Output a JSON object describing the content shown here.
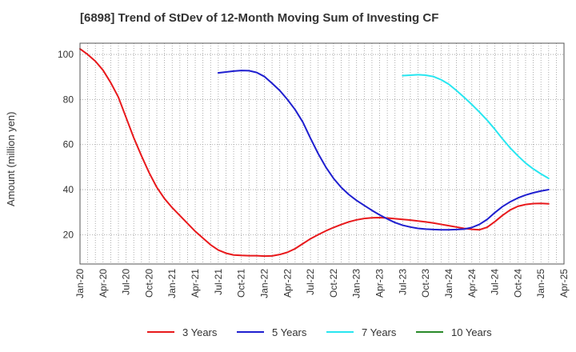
{
  "title": "[6898]  Trend of StDev of 12-Month Moving Sum of Investing CF",
  "colors": {
    "3y": "#e8191c",
    "5y": "#1f1fcf",
    "7y": "#28e6f0",
    "10y": "#2a8a2a",
    "grid": "#999999",
    "axis": "#555555"
  },
  "chart_data": {
    "type": "line",
    "title": "[6898]  Trend of StDev of 12-Month Moving Sum of Investing CF",
    "ylabel": "Amount (million yen)",
    "xlabel": "",
    "ylim": [
      7,
      105
    ],
    "yticks": [
      20,
      40,
      60,
      80,
      100
    ],
    "xlim": [
      "2020-01",
      "2025-04"
    ],
    "xticks": [
      "Jan-20",
      "Apr-20",
      "Jul-20",
      "Oct-20",
      "Jan-21",
      "Apr-21",
      "Jul-21",
      "Oct-21",
      "Jan-22",
      "Apr-22",
      "Jul-22",
      "Oct-22",
      "Jan-23",
      "Apr-23",
      "Jul-23",
      "Oct-23",
      "Jan-24",
      "Apr-24",
      "Jul-24",
      "Oct-24",
      "Jan-25",
      "Apr-25"
    ],
    "grid": true,
    "legend_position": "bottom",
    "series": [
      {
        "name": "3 Years",
        "color": "#e8191c",
        "points": [
          [
            "2020-01",
            102.5
          ],
          [
            "2020-02",
            100
          ],
          [
            "2020-03",
            97
          ],
          [
            "2020-04",
            93
          ],
          [
            "2020-05",
            87.5
          ],
          [
            "2020-06",
            81
          ],
          [
            "2020-07",
            72
          ],
          [
            "2020-08",
            63
          ],
          [
            "2020-09",
            55
          ],
          [
            "2020-10",
            47.5
          ],
          [
            "2020-11",
            41
          ],
          [
            "2020-12",
            36
          ],
          [
            "2021-01",
            32
          ],
          [
            "2021-02",
            28.5
          ],
          [
            "2021-03",
            25
          ],
          [
            "2021-04",
            21.5
          ],
          [
            "2021-05",
            18.5
          ],
          [
            "2021-06",
            15.5
          ],
          [
            "2021-07",
            13.2
          ],
          [
            "2021-08",
            11.8
          ],
          [
            "2021-09",
            11
          ],
          [
            "2021-10",
            10.8
          ],
          [
            "2021-11",
            10.7
          ],
          [
            "2021-12",
            10.7
          ],
          [
            "2022-01",
            10.5
          ],
          [
            "2022-02",
            10.6
          ],
          [
            "2022-03",
            11.2
          ],
          [
            "2022-04",
            12.2
          ],
          [
            "2022-05",
            13.8
          ],
          [
            "2022-06",
            16
          ],
          [
            "2022-07",
            18.2
          ],
          [
            "2022-08",
            20
          ],
          [
            "2022-09",
            21.7
          ],
          [
            "2022-10",
            23.2
          ],
          [
            "2022-11",
            24.5
          ],
          [
            "2022-12",
            25.7
          ],
          [
            "2023-01",
            26.6
          ],
          [
            "2023-02",
            27.2
          ],
          [
            "2023-03",
            27.5
          ],
          [
            "2023-04",
            27.6
          ],
          [
            "2023-05",
            27.4
          ],
          [
            "2023-06",
            27.1
          ],
          [
            "2023-07",
            26.8
          ],
          [
            "2023-08",
            26.5
          ],
          [
            "2023-09",
            26.1
          ],
          [
            "2023-10",
            25.7
          ],
          [
            "2023-11",
            25.2
          ],
          [
            "2023-12",
            24.6
          ],
          [
            "2024-01",
            24
          ],
          [
            "2024-02",
            23.4
          ],
          [
            "2024-03",
            22.8
          ],
          [
            "2024-04",
            22.4
          ],
          [
            "2024-05",
            22.2
          ],
          [
            "2024-06",
            23.3
          ],
          [
            "2024-07",
            25.8
          ],
          [
            "2024-08",
            28.6
          ],
          [
            "2024-09",
            31
          ],
          [
            "2024-10",
            32.6
          ],
          [
            "2024-11",
            33.4
          ],
          [
            "2024-12",
            33.8
          ],
          [
            "2025-01",
            33.9
          ],
          [
            "2025-02",
            33.7
          ]
        ]
      },
      {
        "name": "5 Years",
        "color": "#1f1fcf",
        "points": [
          [
            "2021-07",
            91.8
          ],
          [
            "2021-08",
            92.2
          ],
          [
            "2021-09",
            92.6
          ],
          [
            "2021-10",
            92.9
          ],
          [
            "2021-11",
            92.8
          ],
          [
            "2021-12",
            92
          ],
          [
            "2022-01",
            90.2
          ],
          [
            "2022-02",
            87.2
          ],
          [
            "2022-03",
            84
          ],
          [
            "2022-04",
            80
          ],
          [
            "2022-05",
            75.5
          ],
          [
            "2022-06",
            70
          ],
          [
            "2022-07",
            62.8
          ],
          [
            "2022-08",
            56
          ],
          [
            "2022-09",
            50
          ],
          [
            "2022-10",
            45
          ],
          [
            "2022-11",
            41
          ],
          [
            "2022-12",
            37.8
          ],
          [
            "2023-01",
            35.2
          ],
          [
            "2023-02",
            33
          ],
          [
            "2023-03",
            30.8
          ],
          [
            "2023-04",
            28.8
          ],
          [
            "2023-05",
            27
          ],
          [
            "2023-06",
            25.4
          ],
          [
            "2023-07",
            24.2
          ],
          [
            "2023-08",
            23.4
          ],
          [
            "2023-09",
            22.8
          ],
          [
            "2023-10",
            22.5
          ],
          [
            "2023-11",
            22.3
          ],
          [
            "2023-12",
            22.2
          ],
          [
            "2024-01",
            22.2
          ],
          [
            "2024-02",
            22.3
          ],
          [
            "2024-03",
            22.5
          ],
          [
            "2024-04",
            23.2
          ],
          [
            "2024-05",
            24.6
          ],
          [
            "2024-06",
            26.8
          ],
          [
            "2024-07",
            29.8
          ],
          [
            "2024-08",
            32.5
          ],
          [
            "2024-09",
            34.6
          ],
          [
            "2024-10",
            36.3
          ],
          [
            "2024-11",
            37.6
          ],
          [
            "2024-12",
            38.6
          ],
          [
            "2025-01",
            39.4
          ],
          [
            "2025-02",
            40
          ]
        ]
      },
      {
        "name": "7 Years",
        "color": "#28e6f0",
        "points": [
          [
            "2023-07",
            90.6
          ],
          [
            "2023-08",
            90.8
          ],
          [
            "2023-09",
            91
          ],
          [
            "2023-10",
            90.8
          ],
          [
            "2023-11",
            90.2
          ],
          [
            "2023-12",
            88.8
          ],
          [
            "2024-01",
            86.8
          ],
          [
            "2024-02",
            84
          ],
          [
            "2024-03",
            81
          ],
          [
            "2024-04",
            77.8
          ],
          [
            "2024-05",
            74.4
          ],
          [
            "2024-06",
            70.8
          ],
          [
            "2024-07",
            66.8
          ],
          [
            "2024-08",
            62.5
          ],
          [
            "2024-09",
            58.5
          ],
          [
            "2024-10",
            55
          ],
          [
            "2024-11",
            51.8
          ],
          [
            "2024-12",
            49.2
          ],
          [
            "2025-01",
            47
          ],
          [
            "2025-02",
            45
          ]
        ]
      },
      {
        "name": "10 Years",
        "color": "#2a8a2a",
        "points": []
      }
    ]
  }
}
